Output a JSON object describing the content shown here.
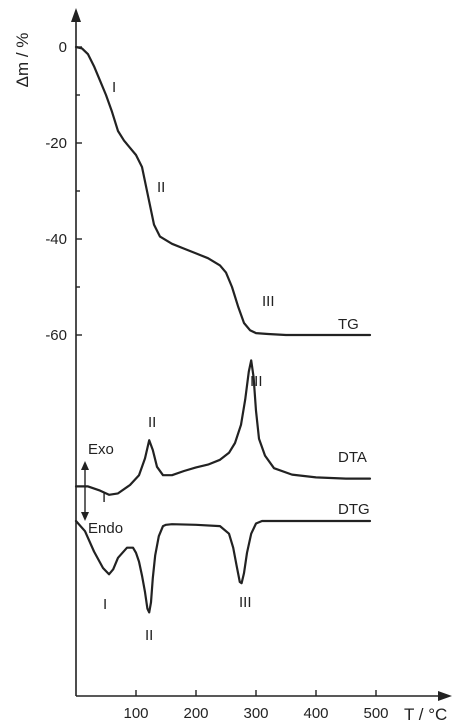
{
  "chart_data": {
    "type": "line",
    "title": "",
    "xlabel": "T / °C",
    "ylabel": "Δm / %",
    "xlim": [
      0,
      500
    ],
    "ylim": [
      -60,
      0
    ],
    "x_ticks": [
      "100",
      "200",
      "300",
      "400",
      "500"
    ],
    "y_ticks": [
      "0",
      "-20",
      "-40",
      "-60"
    ],
    "series": [
      {
        "name": "TG",
        "x": [
          0,
          10,
          20,
          30,
          40,
          50,
          60,
          70,
          80,
          90,
          100,
          110,
          120,
          130,
          140,
          160,
          180,
          200,
          220,
          240,
          250,
          260,
          270,
          280,
          290,
          300,
          320,
          350,
          400,
          490
        ],
        "values": [
          0,
          -0.3,
          -1.5,
          -4,
          -7,
          -10,
          -13.5,
          -17.5,
          -19.5,
          -21,
          -22.5,
          -25,
          -31,
          -37,
          -39.5,
          -41,
          -42,
          -43,
          -44,
          -45.5,
          -47,
          -50,
          -54,
          -57.5,
          -59,
          -59.6,
          -59.8,
          -60,
          -60,
          -60
        ]
      },
      {
        "name": "DTA",
        "x": [
          0,
          20,
          40,
          55,
          70,
          90,
          105,
          115,
          122,
          128,
          135,
          145,
          160,
          180,
          200,
          220,
          240,
          255,
          265,
          275,
          282,
          288,
          292,
          296,
          300,
          305,
          315,
          330,
          360,
          400,
          450,
          490
        ],
        "values": [
          0.2,
          0.2,
          0.05,
          -0.1,
          -0.05,
          0.25,
          0.6,
          1.2,
          1.85,
          1.5,
          0.9,
          0.6,
          0.6,
          0.75,
          0.88,
          0.98,
          1.15,
          1.4,
          1.75,
          2.4,
          3.3,
          4.3,
          4.7,
          4.1,
          2.9,
          1.9,
          1.3,
          0.85,
          0.62,
          0.52,
          0.48,
          0.48
        ]
      },
      {
        "name": "DTG",
        "x": [
          0,
          15,
          30,
          45,
          55,
          62,
          70,
          85,
          95,
          100,
          105,
          110,
          115,
          119,
          122,
          125,
          128,
          132,
          138,
          145,
          150,
          160,
          200,
          240,
          255,
          262,
          268,
          273,
          276,
          280,
          285,
          292,
          300,
          310,
          350,
          490
        ],
        "values": [
          0,
          -0.8,
          -2.4,
          -3.7,
          -4.2,
          -3.8,
          -2.9,
          -2.1,
          -2.1,
          -2.5,
          -3.2,
          -4.3,
          -5.6,
          -6.9,
          -7.2,
          -6.4,
          -4.5,
          -2.7,
          -1.2,
          -0.4,
          -0.3,
          -0.25,
          -0.3,
          -0.4,
          -1.0,
          -2.1,
          -3.6,
          -4.8,
          -4.9,
          -4.1,
          -2.5,
          -1.0,
          -0.2,
          0,
          0,
          0
        ]
      }
    ],
    "curve_labels": [
      "TG",
      "DTA",
      "DTG"
    ],
    "stage_labels": {
      "TG": [
        "I",
        "II",
        "III"
      ],
      "DTA": [
        "I",
        "II",
        "III"
      ],
      "DTG": [
        "I",
        "II",
        "III"
      ]
    },
    "annotations": {
      "exo": "Exo",
      "endo": "Endo"
    },
    "grid": false,
    "line_color": "#222222"
  }
}
